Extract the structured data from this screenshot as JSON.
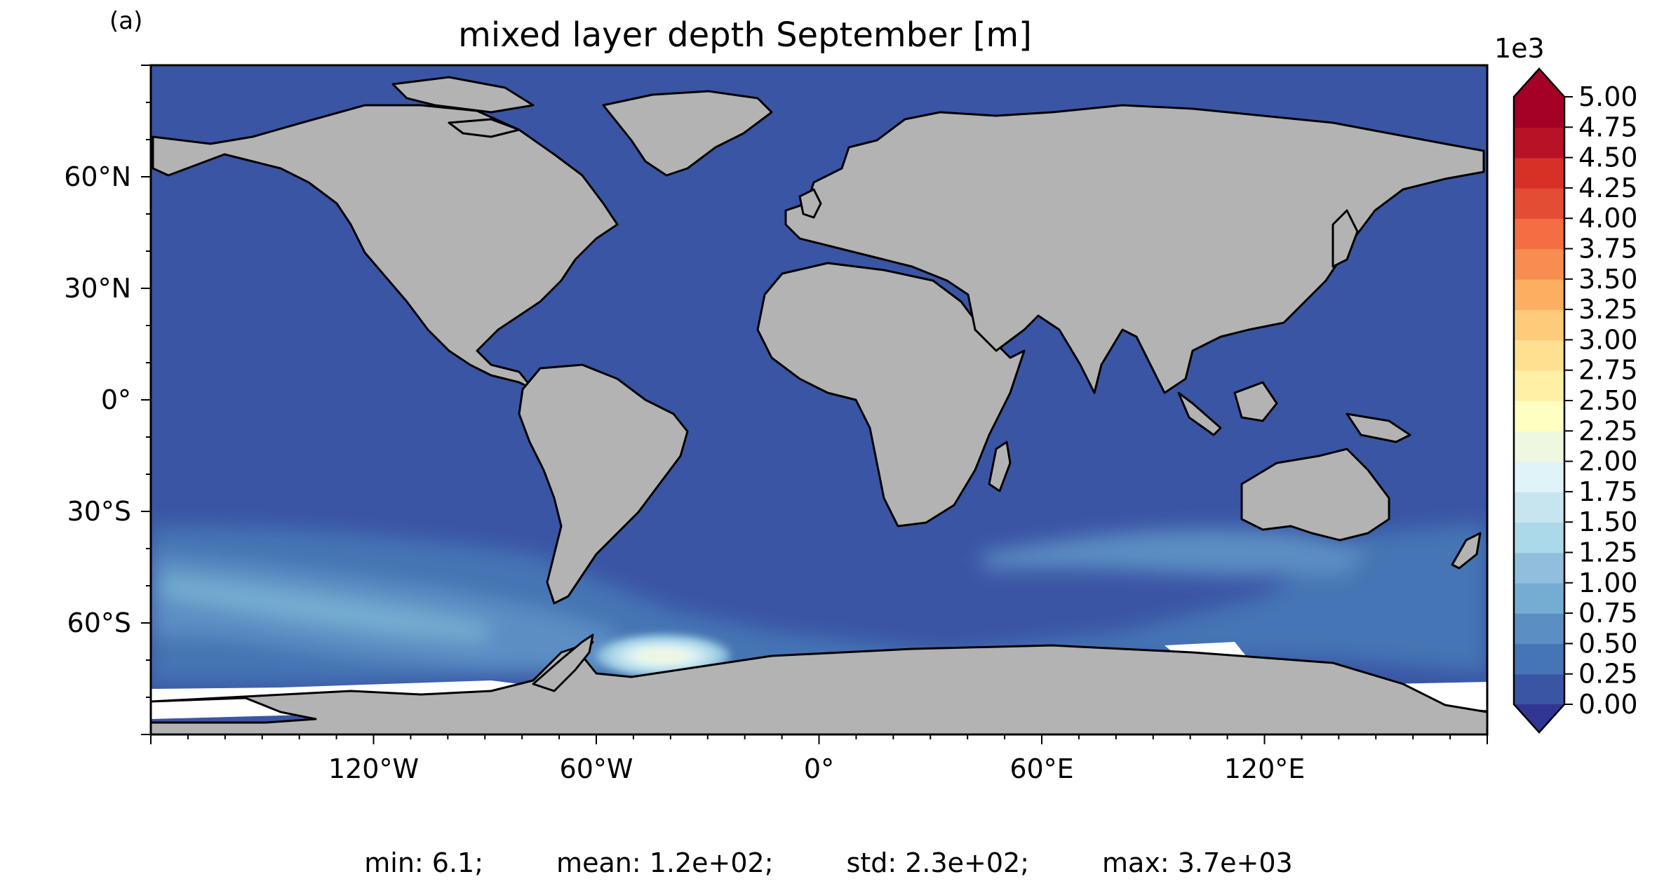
{
  "panel_label": "(a)",
  "title": "mixed layer depth September [m]",
  "map": {
    "projection": "PlateCarree",
    "lon_range": [
      -180,
      180
    ],
    "lat_range": [
      -90,
      90
    ],
    "lon_ticks": [
      {
        "value": -120,
        "label": "120°W"
      },
      {
        "value": -60,
        "label": "60°W"
      },
      {
        "value": 0,
        "label": "0°"
      },
      {
        "value": 60,
        "label": "60°E"
      },
      {
        "value": 120,
        "label": "120°E"
      }
    ],
    "lat_ticks": [
      {
        "value": 60,
        "label": "60°N"
      },
      {
        "value": 30,
        "label": "30°N"
      },
      {
        "value": 0,
        "label": "0°"
      },
      {
        "value": -30,
        "label": "30°S"
      },
      {
        "value": -60,
        "label": "60°S"
      }
    ],
    "colors": {
      "land": "#b3b3b3",
      "ocean_base": "#3a55a4",
      "coast": "#000000",
      "no_data": "#ffffff"
    }
  },
  "colorbar": {
    "multiplier_label": "1e3",
    "cmap": "RdYlBu_r",
    "extend": "both",
    "levels": [
      "0.00",
      "0.25",
      "0.50",
      "0.75",
      "1.00",
      "1.25",
      "1.50",
      "1.75",
      "2.00",
      "2.25",
      "2.50",
      "2.75",
      "3.00",
      "3.25",
      "3.50",
      "3.75",
      "4.00",
      "4.25",
      "4.50",
      "4.75",
      "5.00"
    ],
    "colors": [
      "#313695",
      "#3a55a4",
      "#4575b4",
      "#5b8ec3",
      "#74add1",
      "#91bfdb",
      "#abd9e9",
      "#c6e5ef",
      "#e0f3f8",
      "#eef7e0",
      "#ffffbf",
      "#fff0a6",
      "#fee090",
      "#fdcb7a",
      "#fdae61",
      "#f88d51",
      "#f46d43",
      "#e24d34",
      "#d73027",
      "#b71226",
      "#a50026"
    ]
  },
  "stats": {
    "min": "min: 6.1;",
    "mean": "mean: 1.2e+02;",
    "std": "std: 2.3e+02;",
    "max": "max: 3.7e+03"
  }
}
